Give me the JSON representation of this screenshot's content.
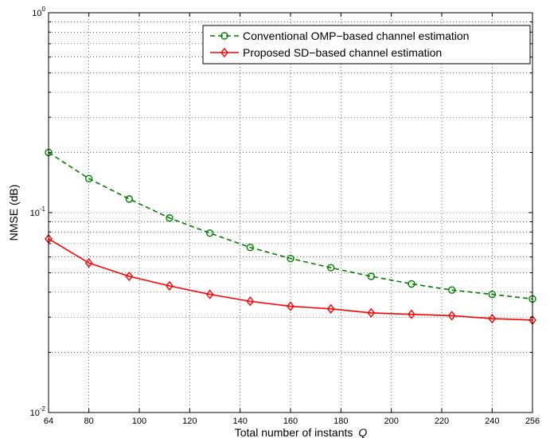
{
  "chart_data": {
    "type": "line",
    "title": "",
    "xlabel": "Total number of instants",
    "xlabel_var": "Q",
    "ylabel": "NMSE (dB)",
    "x": [
      64,
      80,
      96,
      112,
      128,
      144,
      160,
      176,
      192,
      208,
      224,
      240,
      256
    ],
    "xticks": [
      "64",
      "80",
      "100",
      "120",
      "140",
      "160",
      "180",
      "200",
      "220",
      "240",
      "256"
    ],
    "xlim": [
      64,
      256
    ],
    "ylim": [
      0.01,
      1
    ],
    "yscale": "log",
    "yticks": [
      {
        "base": "10",
        "exp": "0"
      },
      {
        "base": "10",
        "exp": "-1"
      },
      {
        "base": "10",
        "exp": "-2"
      }
    ],
    "grid": true,
    "legend_position": "top-right",
    "series": [
      {
        "name": "Conventional OMP−based channel estimation",
        "color": "#007f00",
        "line_style": "dashed",
        "marker": "circle",
        "values": [
          0.2,
          0.148,
          0.117,
          0.094,
          0.079,
          0.067,
          0.059,
          0.053,
          0.048,
          0.044,
          0.041,
          0.039,
          0.037
        ]
      },
      {
        "name": "Proposed SD−based channel estimation",
        "color": "#ff0000",
        "line_style": "solid",
        "marker": "diamond",
        "values": [
          0.074,
          0.056,
          0.048,
          0.043,
          0.039,
          0.036,
          0.034,
          0.033,
          0.0315,
          0.031,
          0.0305,
          0.0295,
          0.029
        ]
      }
    ]
  }
}
